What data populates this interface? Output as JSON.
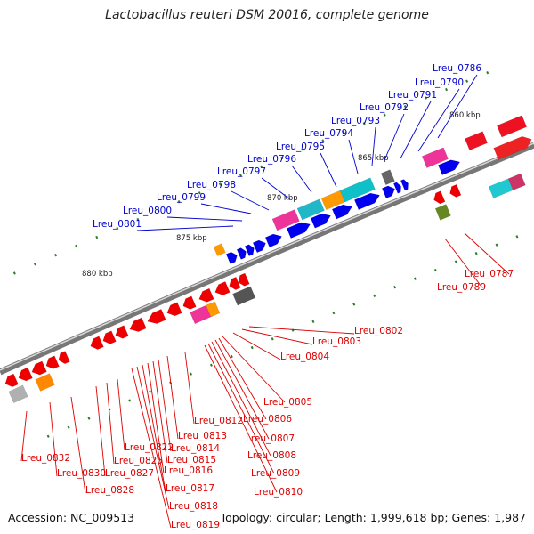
{
  "title": "Lactobacillus reuteri DSM 20016, complete genome",
  "accession": "Accession: NC_009513",
  "summary": "Topology: circular; Length: 1,999,618 bp; Genes: 1,987",
  "colors": {
    "forward_label": "#0000cc",
    "reverse_label": "#dd0000",
    "backbone": "#777777",
    "tick": "#2d7a2d"
  },
  "scale_labels": [
    "860 kbp",
    "865 kbp",
    "870 kbp",
    "875 kbp",
    "880 kbp"
  ],
  "forward_labels": [
    "Lreu_0786",
    "Lreu_0790",
    "Lreu_0791",
    "Lreu_0792",
    "Lreu_0793",
    "Lreu_0794",
    "Lreu_0795",
    "Lreu_0796",
    "Lreu_0797",
    "Lreu_0798",
    "Lreu_0799",
    "Lreu_0800",
    "Lreu_0801"
  ],
  "reverse_labels": [
    "Lreu_0787",
    "Lreu_0789",
    "Lreu_0802",
    "Lreu_0803",
    "Lreu_0804",
    "Lreu_0805",
    "Lreu_0806",
    "Lreu_0807",
    "Lreu_0808",
    "Lreu_0809",
    "Lreu_0810",
    "Lreu_0812",
    "Lreu_0813",
    "Lreu_0814",
    "Lreu_0815",
    "Lreu_0816",
    "Lreu_0817",
    "Lreu_0818",
    "Lreu_0819",
    "Lreu_0822",
    "Lreu_0825",
    "Lreu_0827",
    "Lreu_0828",
    "Lreu_0830",
    "Lreu_0832"
  ]
}
